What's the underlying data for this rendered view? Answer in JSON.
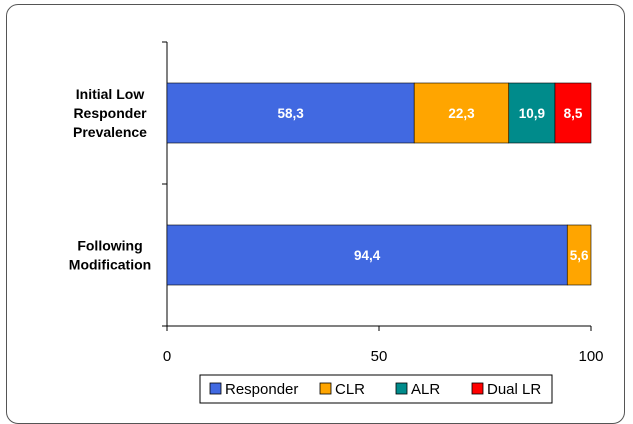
{
  "chart_data": {
    "type": "bar",
    "orientation": "horizontal",
    "stacked": true,
    "categories": [
      "Initial Low Responder Prevalence",
      "Following Modification"
    ],
    "category_lines": [
      [
        "Initial Low",
        "Responder",
        "Prevalence"
      ],
      [
        "Following",
        "Modification"
      ]
    ],
    "series": [
      {
        "name": "Responder",
        "values": [
          58.3,
          94.4
        ],
        "labels": [
          "58,3",
          "94,4"
        ],
        "color": "#4169e1"
      },
      {
        "name": "CLR",
        "values": [
          22.3,
          5.6
        ],
        "labels": [
          "22,3",
          "5,6"
        ],
        "color": "#ffa500"
      },
      {
        "name": "ALR",
        "values": [
          10.9,
          0
        ],
        "labels": [
          "10,9",
          ""
        ],
        "color": "#008b8b"
      },
      {
        "name": "Dual LR",
        "values": [
          8.5,
          0
        ],
        "labels": [
          "8,5",
          ""
        ],
        "color": "#ff0000"
      }
    ],
    "xlim": [
      0,
      100
    ],
    "xticks": [
      0,
      50,
      100
    ],
    "xtick_labels": [
      "0",
      "50",
      "100"
    ],
    "grid": false,
    "legend_position": "bottom",
    "title": "",
    "xlabel": "",
    "ylabel": ""
  }
}
